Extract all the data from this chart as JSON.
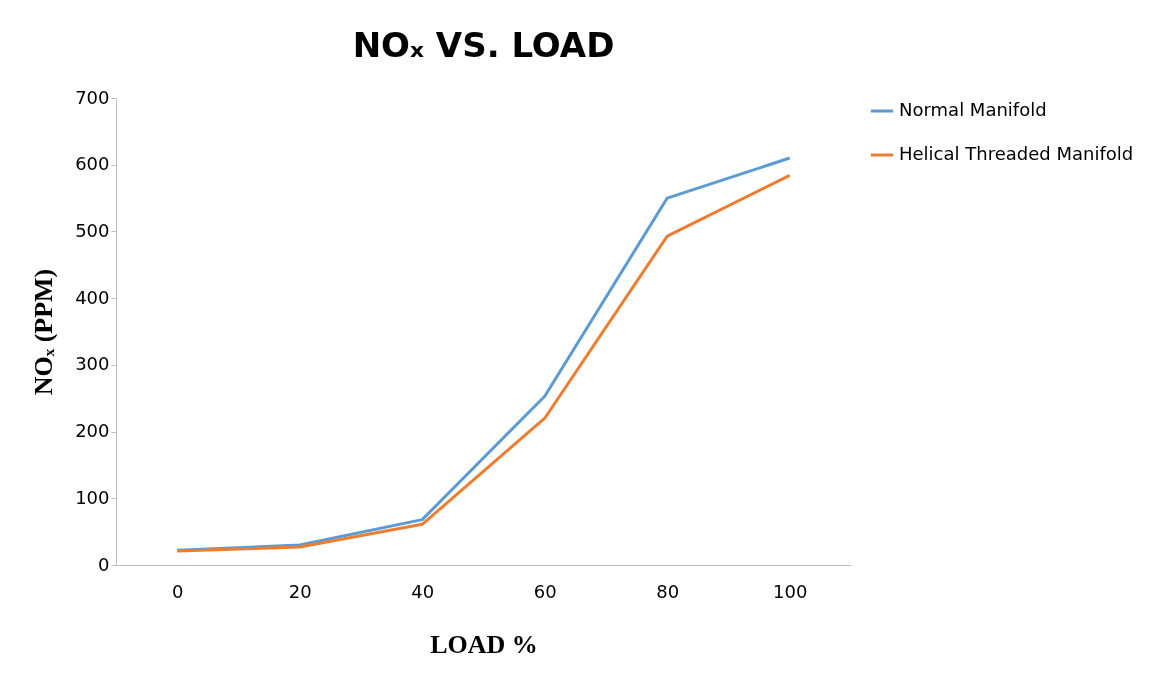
{
  "chart_data": {
    "type": "line",
    "title": "NOₓ VS. LOAD",
    "xlabel": "LOAD %",
    "ylabel": "NOₓ (PPM)",
    "categories": [
      "0",
      "20",
      "40",
      "60",
      "80",
      "100"
    ],
    "series": [
      {
        "name": "Normal Manifold",
        "color": "#5b9bd5",
        "values": [
          22,
          30,
          68,
          253,
          550,
          610
        ]
      },
      {
        "name": "Helical Threaded Manifold",
        "color": "#ed7d31",
        "values": [
          21,
          27,
          61,
          220,
          493,
          584
        ]
      }
    ],
    "ylim": [
      0,
      700
    ],
    "yticks": [
      0,
      100,
      200,
      300,
      400,
      500,
      600,
      700
    ],
    "grid": false,
    "legend": "right",
    "marker": "none",
    "line_style": "solid"
  }
}
